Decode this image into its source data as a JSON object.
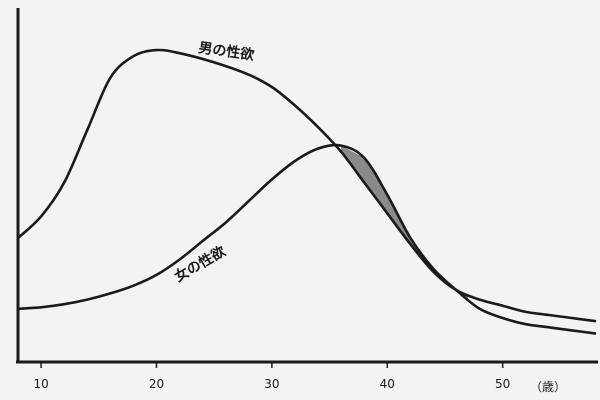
{
  "chart_data": {
    "type": "line",
    "title": "",
    "xlabel": "（歳）",
    "ylabel": "",
    "xlim": [
      8,
      58
    ],
    "ylim": [
      0,
      1
    ],
    "x_ticks": [
      "10",
      "20",
      "30",
      "40",
      "50"
    ],
    "grid": false,
    "shaded_region": {
      "between": [
        "男の性欲",
        "女の性欲"
      ],
      "x_range": [
        36,
        47
      ],
      "color": "#8a8a8a"
    },
    "series": [
      {
        "name": "男の性欲",
        "color": "#1a1a1a",
        "x": [
          8,
          10,
          12,
          14,
          16,
          18,
          20,
          22,
          25,
          28,
          30,
          32,
          34,
          36,
          38,
          40,
          42,
          44,
          46,
          48,
          50,
          52,
          54,
          56,
          58
        ],
        "y": [
          0.38,
          0.45,
          0.56,
          0.73,
          0.9,
          0.97,
          0.99,
          0.98,
          0.95,
          0.91,
          0.87,
          0.81,
          0.74,
          0.66,
          0.56,
          0.46,
          0.36,
          0.27,
          0.21,
          0.18,
          0.16,
          0.14,
          0.13,
          0.12,
          0.11
        ]
      },
      {
        "name": "女の性欲",
        "color": "#1a1a1a",
        "x": [
          8,
          10,
          12,
          14,
          16,
          18,
          20,
          22,
          24,
          26,
          28,
          30,
          32,
          34,
          36,
          38,
          40,
          42,
          44,
          46,
          48,
          50,
          52,
          54,
          56,
          58
        ],
        "y": [
          0.15,
          0.155,
          0.165,
          0.18,
          0.2,
          0.225,
          0.26,
          0.31,
          0.37,
          0.43,
          0.5,
          0.57,
          0.63,
          0.67,
          0.68,
          0.64,
          0.52,
          0.38,
          0.28,
          0.21,
          0.15,
          0.12,
          0.1,
          0.09,
          0.08,
          0.07
        ]
      }
    ]
  }
}
